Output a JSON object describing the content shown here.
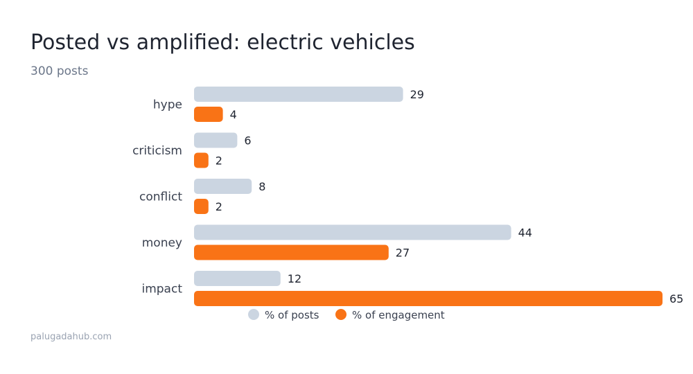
{
  "header": {
    "title": "Posted vs amplified: electric vehicles",
    "subtitle": "300 posts"
  },
  "footer": {
    "source": "palugadahub.com"
  },
  "colors": {
    "posts": "#cbd5e1",
    "engagement": "#f97316"
  },
  "chart_data": {
    "type": "bar",
    "orientation": "horizontal",
    "title": "Posted vs amplified: electric vehicles",
    "subtitle": "300 posts",
    "categories": [
      "hype",
      "criticism",
      "conflict",
      "money",
      "impact"
    ],
    "series": [
      {
        "name": "% of posts",
        "values": [
          29,
          6,
          8,
          44,
          12
        ]
      },
      {
        "name": "% of engagement",
        "values": [
          4,
          2,
          2,
          27,
          65
        ]
      }
    ],
    "xlim": [
      0,
      65
    ],
    "grid": false,
    "legend": "bottom"
  }
}
